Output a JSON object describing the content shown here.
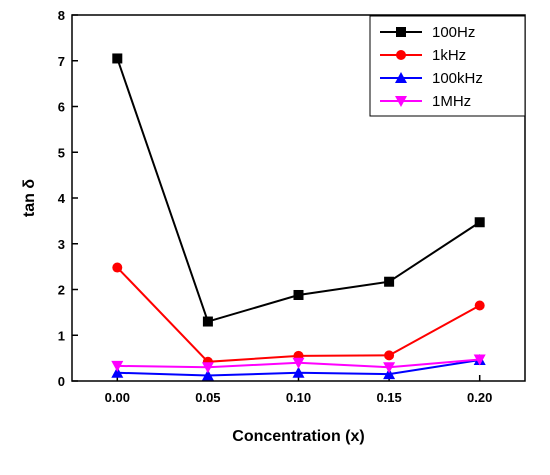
{
  "chart_data": {
    "type": "line",
    "xlabel": "Concentration (x)",
    "ylabel": "tan δ",
    "x": [
      0.0,
      0.05,
      0.1,
      0.15,
      0.2
    ],
    "x_tick_labels": [
      "0.00",
      "0.05",
      "0.10",
      "0.15",
      "0.20"
    ],
    "xlim": [
      -0.025,
      0.225
    ],
    "ylim": [
      0,
      8
    ],
    "y_ticks": [
      0,
      1,
      2,
      3,
      4,
      5,
      6,
      7,
      8
    ],
    "y_tick_labels": [
      "0",
      "1",
      "2",
      "3",
      "4",
      "5",
      "6",
      "7",
      "8"
    ],
    "grid": false,
    "legend_position": "top-right",
    "series": [
      {
        "name": "100Hz",
        "color": "#000000",
        "marker": "square",
        "values": [
          7.05,
          1.3,
          1.88,
          2.17,
          3.47
        ]
      },
      {
        "name": "1kHz",
        "color": "#ff0000",
        "marker": "circle",
        "values": [
          2.48,
          0.42,
          0.55,
          0.56,
          1.65
        ]
      },
      {
        "name": "100kHz",
        "color": "#0000ff",
        "marker": "triangle-up",
        "values": [
          0.18,
          0.12,
          0.18,
          0.15,
          0.46
        ]
      },
      {
        "name": "1MHz",
        "color": "#ff00ff",
        "marker": "triangle-down",
        "values": [
          0.33,
          0.3,
          0.4,
          0.3,
          0.47
        ]
      }
    ]
  }
}
